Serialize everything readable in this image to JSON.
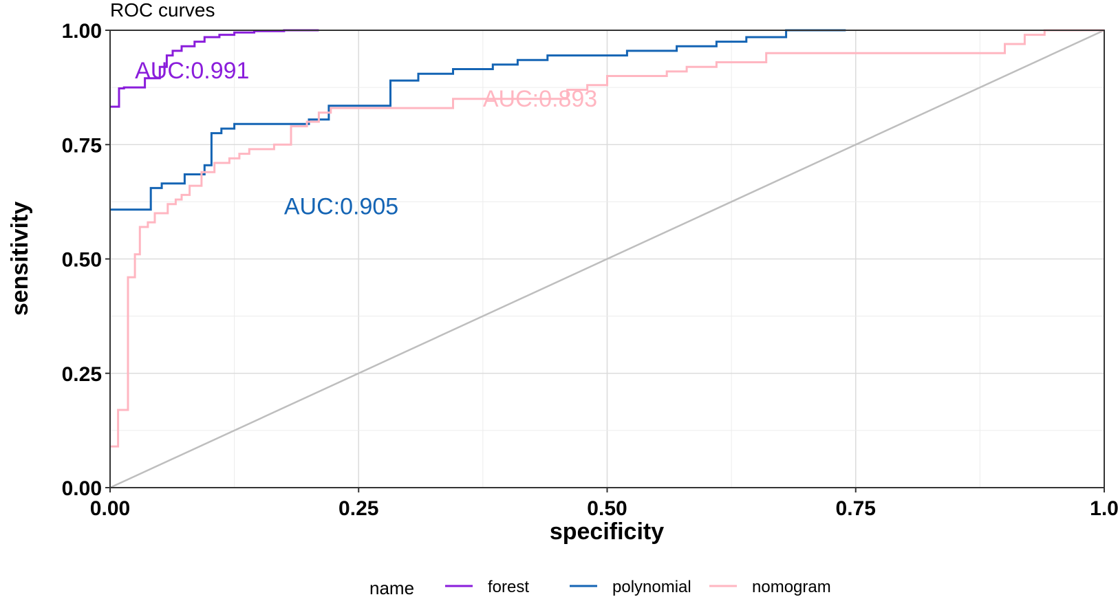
{
  "chart_data": {
    "type": "line",
    "title": "ROC curves",
    "xlabel": "specificity",
    "ylabel": "sensitivity",
    "xlim": [
      0,
      1
    ],
    "ylim": [
      0,
      1
    ],
    "x_ticks": [
      0,
      0.25,
      0.5,
      0.75,
      1
    ],
    "x_tick_labels": [
      "0.00",
      "0.25",
      "0.50",
      "0.75",
      "1.0"
    ],
    "y_ticks": [
      0,
      0.25,
      0.5,
      0.75,
      1
    ],
    "y_tick_labels": [
      "0.00",
      "0.25",
      "0.50",
      "0.75",
      "1.00"
    ],
    "grid": true,
    "legend": {
      "title": "name",
      "position": "bottom"
    },
    "series": [
      {
        "name": "forest",
        "color": "#8a1ddb",
        "x": [
          0,
          0.009,
          0.009,
          0.014,
          0.014,
          0.035,
          0.035,
          0.05,
          0.05,
          0.057,
          0.057,
          0.063,
          0.063,
          0.072,
          0.072,
          0.085,
          0.085,
          0.095,
          0.095,
          0.11,
          0.11,
          0.125,
          0.125,
          0.145,
          0.145,
          0.175,
          0.175,
          0.21
        ],
        "y": [
          0.833,
          0.833,
          0.873,
          0.873,
          0.875,
          0.875,
          0.895,
          0.895,
          0.92,
          0.92,
          0.945,
          0.945,
          0.955,
          0.955,
          0.965,
          0.965,
          0.975,
          0.975,
          0.985,
          0.985,
          0.99,
          0.99,
          0.995,
          0.995,
          0.998,
          0.998,
          1,
          1
        ]
      },
      {
        "name": "polynomial",
        "color": "#1464b4",
        "x": [
          0,
          0.041,
          0.041,
          0.052,
          0.052,
          0.075,
          0.075,
          0.095,
          0.095,
          0.102,
          0.102,
          0.112,
          0.112,
          0.125,
          0.125,
          0.2,
          0.2,
          0.22,
          0.22,
          0.255,
          0.255,
          0.282,
          0.282,
          0.31,
          0.31,
          0.345,
          0.345,
          0.385,
          0.385,
          0.41,
          0.41,
          0.44,
          0.44,
          0.52,
          0.52,
          0.57,
          0.57,
          0.61,
          0.61,
          0.64,
          0.64,
          0.68,
          0.68,
          0.74
        ],
        "y": [
          0.608,
          0.608,
          0.655,
          0.655,
          0.665,
          0.665,
          0.685,
          0.685,
          0.705,
          0.705,
          0.775,
          0.775,
          0.785,
          0.785,
          0.795,
          0.795,
          0.805,
          0.805,
          0.835,
          0.835,
          0.835,
          0.835,
          0.89,
          0.89,
          0.905,
          0.905,
          0.915,
          0.915,
          0.925,
          0.925,
          0.935,
          0.935,
          0.945,
          0.945,
          0.955,
          0.955,
          0.965,
          0.965,
          0.975,
          0.975,
          0.985,
          0.985,
          1,
          1
        ]
      },
      {
        "name": "nomogram",
        "color": "#ffb6c1",
        "x": [
          0,
          0.008,
          0.008,
          0.018,
          0.018,
          0.025,
          0.025,
          0.03,
          0.03,
          0.038,
          0.038,
          0.045,
          0.045,
          0.058,
          0.058,
          0.066,
          0.066,
          0.072,
          0.072,
          0.08,
          0.08,
          0.092,
          0.092,
          0.105,
          0.105,
          0.12,
          0.12,
          0.13,
          0.13,
          0.14,
          0.14,
          0.165,
          0.165,
          0.182,
          0.182,
          0.198,
          0.198,
          0.21,
          0.21,
          0.222,
          0.222,
          0.345,
          0.345,
          0.46,
          0.46,
          0.48,
          0.48,
          0.5,
          0.5,
          0.56,
          0.56,
          0.58,
          0.58,
          0.61,
          0.61,
          0.66,
          0.66,
          0.9,
          0.9,
          0.92,
          0.92,
          0.94,
          0.94,
          1
        ],
        "y": [
          0.09,
          0.09,
          0.17,
          0.17,
          0.46,
          0.46,
          0.51,
          0.51,
          0.57,
          0.57,
          0.58,
          0.58,
          0.6,
          0.6,
          0.62,
          0.62,
          0.63,
          0.63,
          0.64,
          0.64,
          0.66,
          0.66,
          0.69,
          0.69,
          0.71,
          0.71,
          0.72,
          0.72,
          0.73,
          0.73,
          0.74,
          0.74,
          0.75,
          0.75,
          0.79,
          0.79,
          0.8,
          0.8,
          0.82,
          0.82,
          0.83,
          0.83,
          0.85,
          0.85,
          0.87,
          0.87,
          0.88,
          0.88,
          0.9,
          0.9,
          0.91,
          0.91,
          0.92,
          0.92,
          0.93,
          0.93,
          0.95,
          0.95,
          0.97,
          0.97,
          0.99,
          0.99,
          1,
          1
        ]
      },
      {
        "name": "",
        "color": "#bebebe",
        "x": [
          0,
          1
        ],
        "y": [
          0,
          1
        ]
      }
    ],
    "annotations": [
      {
        "text": "AUC:0.991",
        "x": 0.025,
        "y": 0.895,
        "color": "#8a1ddb"
      },
      {
        "text": "AUC:0.893",
        "x": 0.375,
        "y": 0.833,
        "color": "#ffb6c1"
      },
      {
        "text": "AUC:0.905",
        "x": 0.175,
        "y": 0.598,
        "color": "#1464b4"
      }
    ]
  }
}
